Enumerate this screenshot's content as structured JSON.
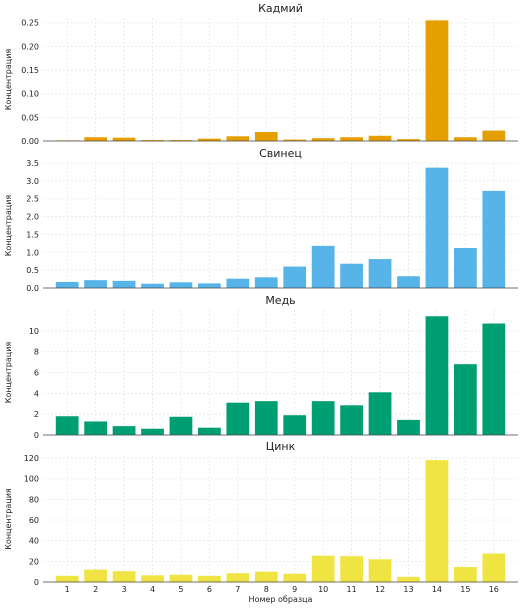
{
  "chart_data": [
    {
      "type": "bar",
      "title": "Кадмий",
      "xlabel": "",
      "ylabel": "Концентрация",
      "categories": [
        "1",
        "2",
        "3",
        "4",
        "5",
        "6",
        "7",
        "8",
        "9",
        "10",
        "11",
        "12",
        "13",
        "14",
        "15",
        "16"
      ],
      "values": [
        0.001,
        0.008,
        0.007,
        0.002,
        0.002,
        0.005,
        0.01,
        0.019,
        0.003,
        0.006,
        0.008,
        0.011,
        0.004,
        0.255,
        0.008,
        0.022
      ],
      "ylim": [
        0,
        0.26
      ],
      "yticks": [
        0,
        0.05,
        0.1,
        0.15,
        0.2,
        0.25
      ],
      "ytick_labels": [
        "0.00",
        "0.05",
        "0.10",
        "0.15",
        "0.20",
        "0.25"
      ],
      "color": "#E69F00",
      "grid": true
    },
    {
      "type": "bar",
      "title": "Свинец",
      "xlabel": "",
      "ylabel": "Концентрация",
      "categories": [
        "1",
        "2",
        "3",
        "4",
        "5",
        "6",
        "7",
        "8",
        "9",
        "10",
        "11",
        "12",
        "13",
        "14",
        "15",
        "16"
      ],
      "values": [
        0.17,
        0.22,
        0.2,
        0.12,
        0.16,
        0.13,
        0.26,
        0.3,
        0.6,
        1.18,
        0.68,
        0.81,
        0.33,
        3.37,
        1.12,
        2.72
      ],
      "ylim": [
        0,
        3.5
      ],
      "yticks": [
        0,
        0.5,
        1.0,
        1.5,
        2.0,
        2.5,
        3.0,
        3.5
      ],
      "ytick_labels": [
        "0.0",
        "0.5",
        "1.0",
        "1.5",
        "2.0",
        "2.5",
        "3.0",
        "3.5"
      ],
      "color": "#56B4E9",
      "grid": true
    },
    {
      "type": "bar",
      "title": "Медь",
      "xlabel": "",
      "ylabel": "Концентрация",
      "categories": [
        "1",
        "2",
        "3",
        "4",
        "5",
        "6",
        "7",
        "8",
        "9",
        "10",
        "11",
        "12",
        "13",
        "14",
        "15",
        "16"
      ],
      "values": [
        1.8,
        1.3,
        0.85,
        0.6,
        1.75,
        0.7,
        3.1,
        3.25,
        1.9,
        3.25,
        2.85,
        4.1,
        1.45,
        11.4,
        6.8,
        10.7
      ],
      "ylim": [
        0,
        12
      ],
      "yticks": [
        0,
        2,
        4,
        6,
        8,
        10
      ],
      "ytick_labels": [
        "0",
        "2",
        "4",
        "6",
        "8",
        "10"
      ],
      "color": "#009E73",
      "grid": true
    },
    {
      "type": "bar",
      "title": "Цинк",
      "xlabel": "Номер образца",
      "ylabel": "Концентрация",
      "categories": [
        "1",
        "2",
        "3",
        "4",
        "5",
        "6",
        "7",
        "8",
        "9",
        "10",
        "11",
        "12",
        "13",
        "14",
        "15",
        "16"
      ],
      "values": [
        6,
        12,
        10.5,
        6.5,
        7,
        6,
        8.5,
        10,
        8,
        25.5,
        25,
        22,
        5,
        118,
        14.5,
        27.5
      ],
      "ylim": [
        0,
        122
      ],
      "yticks": [
        0,
        20,
        40,
        60,
        80,
        100,
        120
      ],
      "ytick_labels": [
        "0",
        "20",
        "40",
        "60",
        "80",
        "100",
        "120"
      ],
      "color": "#F0E442",
      "grid": true
    }
  ]
}
